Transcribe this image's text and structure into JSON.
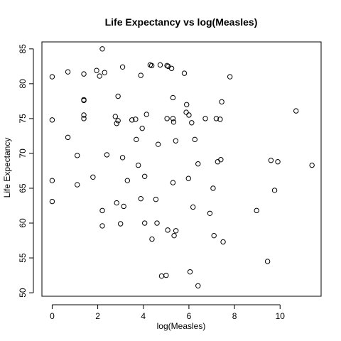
{
  "chart_data": {
    "type": "scatter",
    "title": "Life Expectancy vs  log(Measles)",
    "xlabel": "log(Measles)",
    "ylabel": "Life Expectancy",
    "xlim": [
      -0.45,
      11.8
    ],
    "ylim": [
      49.5,
      86.0
    ],
    "xticks": [
      0,
      2,
      4,
      6,
      8,
      10
    ],
    "yticks": [
      50,
      55,
      60,
      65,
      70,
      75,
      80,
      85
    ],
    "grid": false,
    "points": [
      [
        0.0,
        81.0
      ],
      [
        0.0,
        74.8
      ],
      [
        0.0,
        66.1
      ],
      [
        0.0,
        63.1
      ],
      [
        0.69,
        81.7
      ],
      [
        0.69,
        72.3
      ],
      [
        1.1,
        69.7
      ],
      [
        1.1,
        65.5
      ],
      [
        1.39,
        81.4
      ],
      [
        1.39,
        77.7
      ],
      [
        1.39,
        77.6
      ],
      [
        1.39,
        75.5
      ],
      [
        1.39,
        75.0
      ],
      [
        1.79,
        66.6
      ],
      [
        1.95,
        81.9
      ],
      [
        2.08,
        81.1
      ],
      [
        2.2,
        85.0
      ],
      [
        2.2,
        61.8
      ],
      [
        2.2,
        59.6
      ],
      [
        2.3,
        81.6
      ],
      [
        2.4,
        69.8
      ],
      [
        2.77,
        75.3
      ],
      [
        2.83,
        74.3
      ],
      [
        2.89,
        74.7
      ],
      [
        2.89,
        78.2
      ],
      [
        2.83,
        62.9
      ],
      [
        3.0,
        59.9
      ],
      [
        3.09,
        82.4
      ],
      [
        3.09,
        69.4
      ],
      [
        3.14,
        62.4
      ],
      [
        3.3,
        66.1
      ],
      [
        3.5,
        74.8
      ],
      [
        3.66,
        74.9
      ],
      [
        3.69,
        72.0
      ],
      [
        3.78,
        68.3
      ],
      [
        3.89,
        63.5
      ],
      [
        3.89,
        81.2
      ],
      [
        3.95,
        73.6
      ],
      [
        4.06,
        66.7
      ],
      [
        4.06,
        60.0
      ],
      [
        4.14,
        75.6
      ],
      [
        4.3,
        82.7
      ],
      [
        4.37,
        82.6
      ],
      [
        4.38,
        57.7
      ],
      [
        4.55,
        63.4
      ],
      [
        4.6,
        60.0
      ],
      [
        4.65,
        71.3
      ],
      [
        4.74,
        82.7
      ],
      [
        4.8,
        52.4
      ],
      [
        5.0,
        52.5
      ],
      [
        5.04,
        82.6
      ],
      [
        5.04,
        75.0
      ],
      [
        5.09,
        82.5
      ],
      [
        5.07,
        59.0
      ],
      [
        5.24,
        82.2
      ],
      [
        5.3,
        78.0
      ],
      [
        5.33,
        74.5
      ],
      [
        5.3,
        75.0
      ],
      [
        5.35,
        58.2
      ],
      [
        5.3,
        65.8
      ],
      [
        5.42,
        71.8
      ],
      [
        5.43,
        58.9
      ],
      [
        5.8,
        81.5
      ],
      [
        5.88,
        75.9
      ],
      [
        5.9,
        77.0
      ],
      [
        6.0,
        75.5
      ],
      [
        5.98,
        66.4
      ],
      [
        6.05,
        53.0
      ],
      [
        6.12,
        74.4
      ],
      [
        6.18,
        62.3
      ],
      [
        6.26,
        72.0
      ],
      [
        6.4,
        68.5
      ],
      [
        6.4,
        51.0
      ],
      [
        6.72,
        75.0
      ],
      [
        6.92,
        61.4
      ],
      [
        7.06,
        65.0
      ],
      [
        7.1,
        58.2
      ],
      [
        7.2,
        75.0
      ],
      [
        7.26,
        68.8
      ],
      [
        7.37,
        74.9
      ],
      [
        7.4,
        69.1
      ],
      [
        7.44,
        77.4
      ],
      [
        7.5,
        57.3
      ],
      [
        7.8,
        81.0
      ],
      [
        8.97,
        61.8
      ],
      [
        9.45,
        54.5
      ],
      [
        9.6,
        69.0
      ],
      [
        9.76,
        64.7
      ],
      [
        9.9,
        68.8
      ],
      [
        10.7,
        76.1
      ],
      [
        11.4,
        68.3
      ]
    ]
  }
}
